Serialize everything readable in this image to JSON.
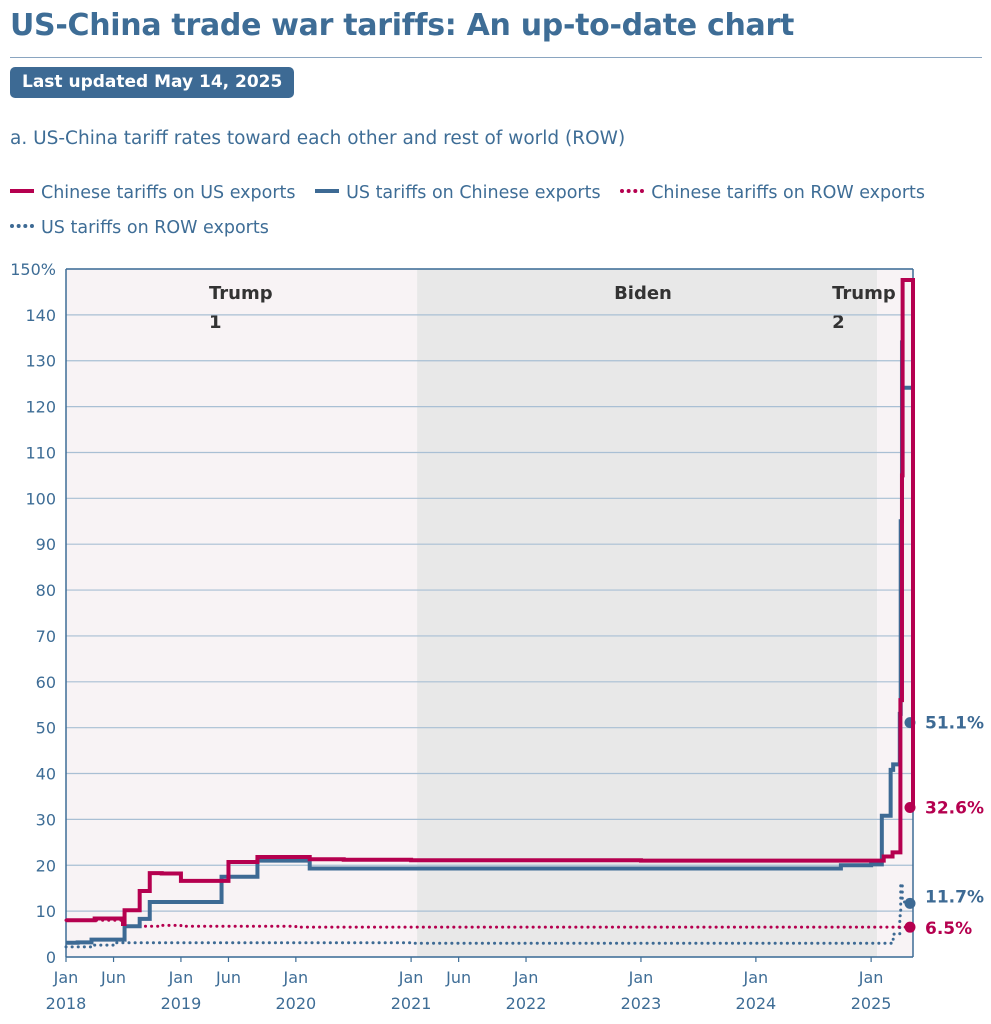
{
  "page": {
    "title": "US-China trade war tariffs: An up-to-date chart",
    "badge": "Last updated May 14, 2025"
  },
  "chart_data": {
    "type": "line",
    "subtitle": "a. US-China tariff rates toward each other and rest of world (ROW)",
    "y_unit": "%",
    "ylim": [
      0,
      150
    ],
    "yticks": [
      0,
      10,
      20,
      30,
      40,
      50,
      60,
      70,
      80,
      90,
      100,
      110,
      120,
      130,
      140,
      150
    ],
    "ytick_labels": [
      "0",
      "10",
      "20",
      "30",
      "40",
      "50",
      "60",
      "70",
      "80",
      "90",
      "100",
      "110",
      "120",
      "130",
      "140",
      "150%"
    ],
    "xlim": [
      "2018-01-01",
      "2025-05-14"
    ],
    "xticks": [
      {
        "date": "2018-01-01",
        "line1": "Jan",
        "line2": "2018"
      },
      {
        "date": "2018-06-01",
        "line1": "Jun",
        "line2": ""
      },
      {
        "date": "2019-01-01",
        "line1": "Jan",
        "line2": "2019"
      },
      {
        "date": "2019-06-01",
        "line1": "Jun",
        "line2": ""
      },
      {
        "date": "2020-01-01",
        "line1": "Jan",
        "line2": "2020"
      },
      {
        "date": "2021-01-01",
        "line1": "Jan",
        "line2": "2021"
      },
      {
        "date": "2021-06-01",
        "line1": "Jun",
        "line2": ""
      },
      {
        "date": "2022-01-01",
        "line1": "Jan",
        "line2": "2022"
      },
      {
        "date": "2023-01-01",
        "line1": "Jan",
        "line2": "2023"
      },
      {
        "date": "2024-01-01",
        "line1": "Jan",
        "line2": "2024"
      },
      {
        "date": "2025-01-01",
        "line1": "Jan",
        "line2": "2025"
      }
    ],
    "periods": [
      {
        "line1": "Trump",
        "line2": "1",
        "start": "2018-01-01",
        "end": "2021-01-20",
        "fill": "#f8f3f5"
      },
      {
        "line1": "Biden",
        "line2": "",
        "start": "2021-01-20",
        "end": "2025-01-20",
        "fill": "#e8e8e8"
      },
      {
        "line1": "Trump",
        "line2": "2",
        "start": "2025-01-20",
        "end": "2025-05-14",
        "fill": "#f8f3f5"
      }
    ],
    "grid": true,
    "legend_position": "top",
    "series": [
      {
        "name": "Chinese tariffs on US exports",
        "color": "#b5004f",
        "style": "solid",
        "step": true,
        "end_label": "32.6%",
        "points": [
          [
            "2018-01-01",
            8.0
          ],
          [
            "2018-04-02",
            8.4
          ],
          [
            "2018-07-01",
            7.2
          ],
          [
            "2018-07-06",
            10.2
          ],
          [
            "2018-08-23",
            14.4
          ],
          [
            "2018-09-24",
            18.3
          ],
          [
            "2018-11-01",
            18.2
          ],
          [
            "2019-01-01",
            16.6
          ],
          [
            "2019-06-01",
            20.7
          ],
          [
            "2019-09-01",
            21.8
          ],
          [
            "2019-12-15",
            21.8
          ],
          [
            "2020-02-14",
            21.3
          ],
          [
            "2020-06-01",
            21.2
          ],
          [
            "2021-01-01",
            21.1
          ],
          [
            "2022-01-01",
            21.1
          ],
          [
            "2023-01-01",
            21.0
          ],
          [
            "2024-01-01",
            21.0
          ],
          [
            "2025-01-01",
            21.0
          ],
          [
            "2025-02-10",
            21.9
          ],
          [
            "2025-03-10",
            22.8
          ],
          [
            "2025-04-04",
            56.0
          ],
          [
            "2025-04-09",
            105.0
          ],
          [
            "2025-04-11",
            147.6
          ],
          [
            "2025-05-14",
            32.6
          ]
        ]
      },
      {
        "name": "US tariffs on Chinese exports",
        "color": "#3d6a94",
        "style": "solid",
        "step": true,
        "end_label": "51.1%",
        "points": [
          [
            "2018-01-01",
            3.1
          ],
          [
            "2018-02-07",
            3.2
          ],
          [
            "2018-03-23",
            3.8
          ],
          [
            "2018-07-06",
            6.7
          ],
          [
            "2018-08-23",
            8.3
          ],
          [
            "2018-09-24",
            12.0
          ],
          [
            "2019-05-10",
            17.5
          ],
          [
            "2019-09-01",
            21.0
          ],
          [
            "2020-02-14",
            19.3
          ],
          [
            "2021-01-01",
            19.3
          ],
          [
            "2022-01-01",
            19.3
          ],
          [
            "2023-01-01",
            19.3
          ],
          [
            "2024-01-01",
            19.3
          ],
          [
            "2024-09-27",
            20.0
          ],
          [
            "2025-01-01",
            20.2
          ],
          [
            "2025-02-04",
            30.8
          ],
          [
            "2025-03-04",
            40.8
          ],
          [
            "2025-03-12",
            42.0
          ],
          [
            "2025-04-02",
            53.0
          ],
          [
            "2025-04-05",
            95.0
          ],
          [
            "2025-04-09",
            134.0
          ],
          [
            "2025-04-10",
            124.1
          ],
          [
            "2025-05-14",
            51.1
          ]
        ]
      },
      {
        "name": "Chinese tariffs on ROW exports",
        "color": "#b5004f",
        "style": "dotted",
        "step": true,
        "end_label": "6.5%",
        "points": [
          [
            "2018-01-01",
            8.0
          ],
          [
            "2018-07-01",
            6.7
          ],
          [
            "2018-11-01",
            6.9
          ],
          [
            "2019-01-01",
            6.7
          ],
          [
            "2020-01-01",
            6.5
          ],
          [
            "2021-01-01",
            6.5
          ],
          [
            "2022-01-01",
            6.5
          ],
          [
            "2023-01-01",
            6.5
          ],
          [
            "2024-01-01",
            6.5
          ],
          [
            "2025-01-01",
            6.5
          ],
          [
            "2025-05-14",
            6.5
          ]
        ]
      },
      {
        "name": "US tariffs on ROW exports",
        "color": "#3d6a94",
        "style": "dotted",
        "step": true,
        "end_label": "11.7%",
        "points": [
          [
            "2018-01-01",
            2.2
          ],
          [
            "2018-03-23",
            2.6
          ],
          [
            "2018-06-01",
            3.1
          ],
          [
            "2021-01-01",
            3.0
          ],
          [
            "2022-01-01",
            3.0
          ],
          [
            "2023-01-01",
            3.0
          ],
          [
            "2024-01-01",
            3.0
          ],
          [
            "2025-01-01",
            3.0
          ],
          [
            "2025-03-12",
            5.0
          ],
          [
            "2025-04-02",
            9.0
          ],
          [
            "2025-04-05",
            16.0
          ],
          [
            "2025-04-10",
            12.0
          ],
          [
            "2025-05-14",
            11.7
          ]
        ]
      }
    ]
  }
}
